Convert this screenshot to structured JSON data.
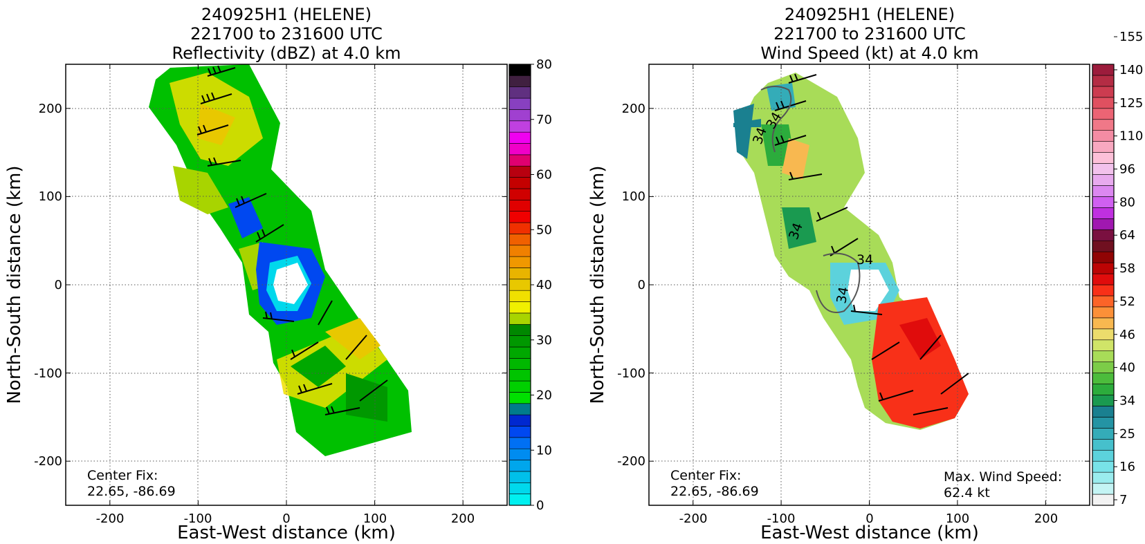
{
  "chart_data": [
    {
      "type": "heatmap",
      "title": [
        "240925H1 (HELENE)",
        "221700 to 231600 UTC",
        "Reflectivity (dBZ) at 4.0 km"
      ],
      "xlabel": "East-West distance (km)",
      "ylabel": "North-South distance (km)",
      "xlim": [
        -250,
        250
      ],
      "ylim": [
        -250,
        250
      ],
      "xticks": [
        -200,
        -100,
        0,
        100,
        200
      ],
      "yticks": [
        -200,
        -100,
        0,
        100,
        200
      ],
      "grid": true,
      "colorbar": {
        "min": 0,
        "max": 80,
        "tick_values": [
          0,
          10,
          20,
          30,
          40,
          50,
          60,
          70,
          80
        ],
        "tick_labels": [
          "0",
          "10",
          "20",
          "30",
          "40",
          "50",
          "60",
          "70",
          "80"
        ],
        "colors": [
          "#00f0f0",
          "#00d8ec",
          "#00c0ea",
          "#00a6ec",
          "#008cf0",
          "#0070f4",
          "#0048f0",
          "#0028d0",
          "#007c8c",
          "#00e000",
          "#00d000",
          "#00c400",
          "#00b800",
          "#00a800",
          "#009800",
          "#008800",
          "#a8d400",
          "#f0f000",
          "#f0e000",
          "#e8c800",
          "#e8b400",
          "#f09800",
          "#f08000",
          "#f06000",
          "#f03000",
          "#f00000",
          "#e00000",
          "#d00000",
          "#c40000",
          "#b80010",
          "#e00070",
          "#f000c8",
          "#f000f0",
          "#c040e0",
          "#a040d0",
          "#8840c0",
          "#603080",
          "#402040",
          "#000000"
        ]
      },
      "annotations": [
        "Center Fix:",
        "22.65, -86.69"
      ]
    },
    {
      "type": "heatmap",
      "title": [
        "240925H1 (HELENE)",
        "221700 to 231600 UTC",
        "Wind Speed (kt) at 4.0 km"
      ],
      "xlabel": "East-West distance (km)",
      "ylabel": "North-South distance (km)",
      "xlim": [
        -250,
        250
      ],
      "ylim": [
        -250,
        250
      ],
      "xticks": [
        -200,
        -100,
        0,
        100,
        200
      ],
      "yticks": [
        -200,
        -100,
        0,
        100,
        200
      ],
      "grid": true,
      "contour_labels": [
        "34",
        "34",
        "34",
        "34",
        "34"
      ],
      "colorbar": {
        "tick_labels": [
          "7",
          "16",
          "25",
          "34",
          "40",
          "46",
          "52",
          "58",
          "64",
          "80",
          "96",
          "110",
          "125",
          "140",
          "155"
        ],
        "colors": [
          "#f2f2f2",
          "#c4f4f4",
          "#9aecee",
          "#78e2e8",
          "#5cd2dc",
          "#46c0cc",
          "#34acb8",
          "#2494a4",
          "#1a8090",
          "#1a9a50",
          "#2cac3c",
          "#4cbc3c",
          "#7ccc48",
          "#a8dc58",
          "#d0e468",
          "#ecdc6c",
          "#f8b850",
          "#fc9038",
          "#fc6428",
          "#f83018",
          "#e00c0c",
          "#bc0404",
          "#900404",
          "#701020",
          "#7a1040",
          "#a018b0",
          "#c030e0",
          "#d060f0",
          "#dc88f0",
          "#e8aaee",
          "#f2c2ec",
          "#fcc0d8",
          "#f8a8c0",
          "#f48ca4",
          "#f07888",
          "#ec6474",
          "#e05060",
          "#cc3c50",
          "#b42c44",
          "#9c1c3c"
        ]
      },
      "annotations": [
        "Center Fix:",
        "22.65, -86.69",
        "Max. Wind Speed:",
        "62.4 kt"
      ]
    }
  ]
}
